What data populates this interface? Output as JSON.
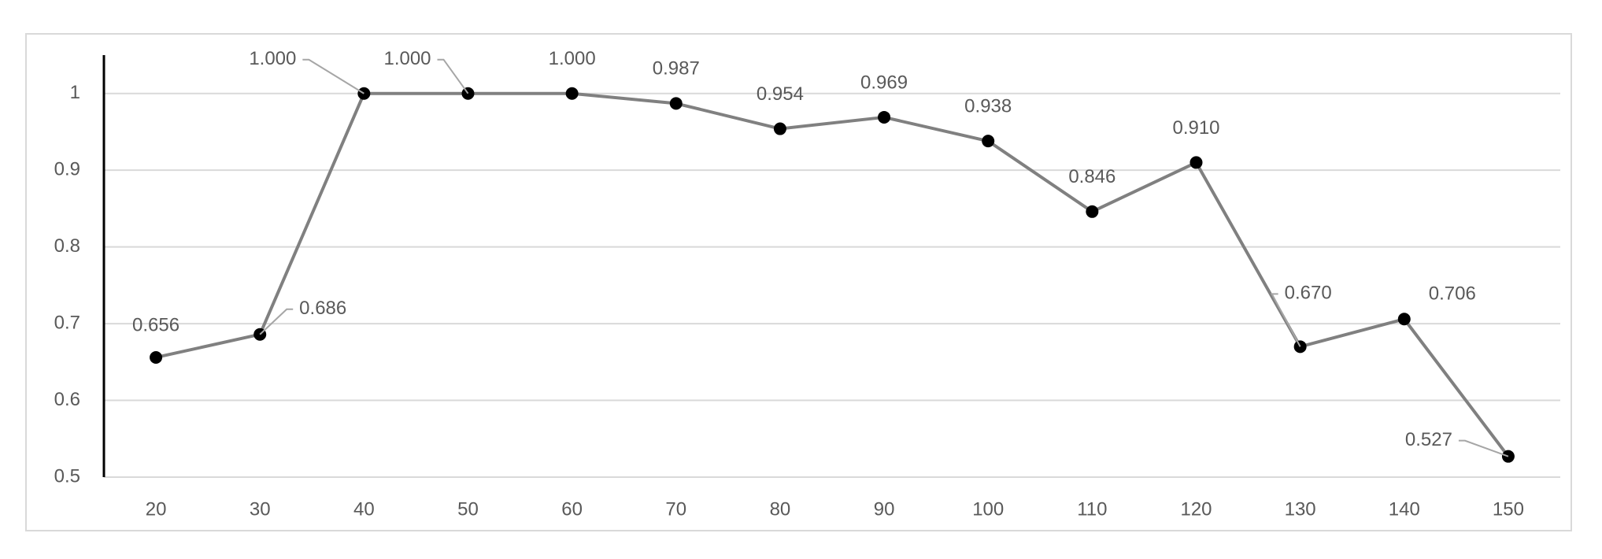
{
  "chart_data": {
    "type": "line",
    "categories": [
      "20",
      "30",
      "40",
      "50",
      "60",
      "70",
      "80",
      "90",
      "100",
      "110",
      "120",
      "130",
      "140",
      "150"
    ],
    "series": [
      {
        "color": "#808080",
        "marker_color": "#000000",
        "values": [
          0.656,
          0.686,
          1,
          1,
          1,
          0.987,
          0.954,
          0.969,
          0.938,
          0.846,
          0.91,
          0.67,
          0.706,
          0.527
        ],
        "value_labels": [
          "0.656",
          "0.686",
          "1.000",
          "1.000",
          "1.000",
          "0.987",
          "0.954",
          "0.969",
          "0.938",
          "0.846",
          "0.910",
          "0.670",
          "0.706",
          "0.527"
        ]
      }
    ],
    "ylim": [
      0.5,
      1.05
    ],
    "yticks": [
      0.5,
      0.6,
      0.7,
      0.8,
      0.9,
      1
    ],
    "grid": true
  }
}
